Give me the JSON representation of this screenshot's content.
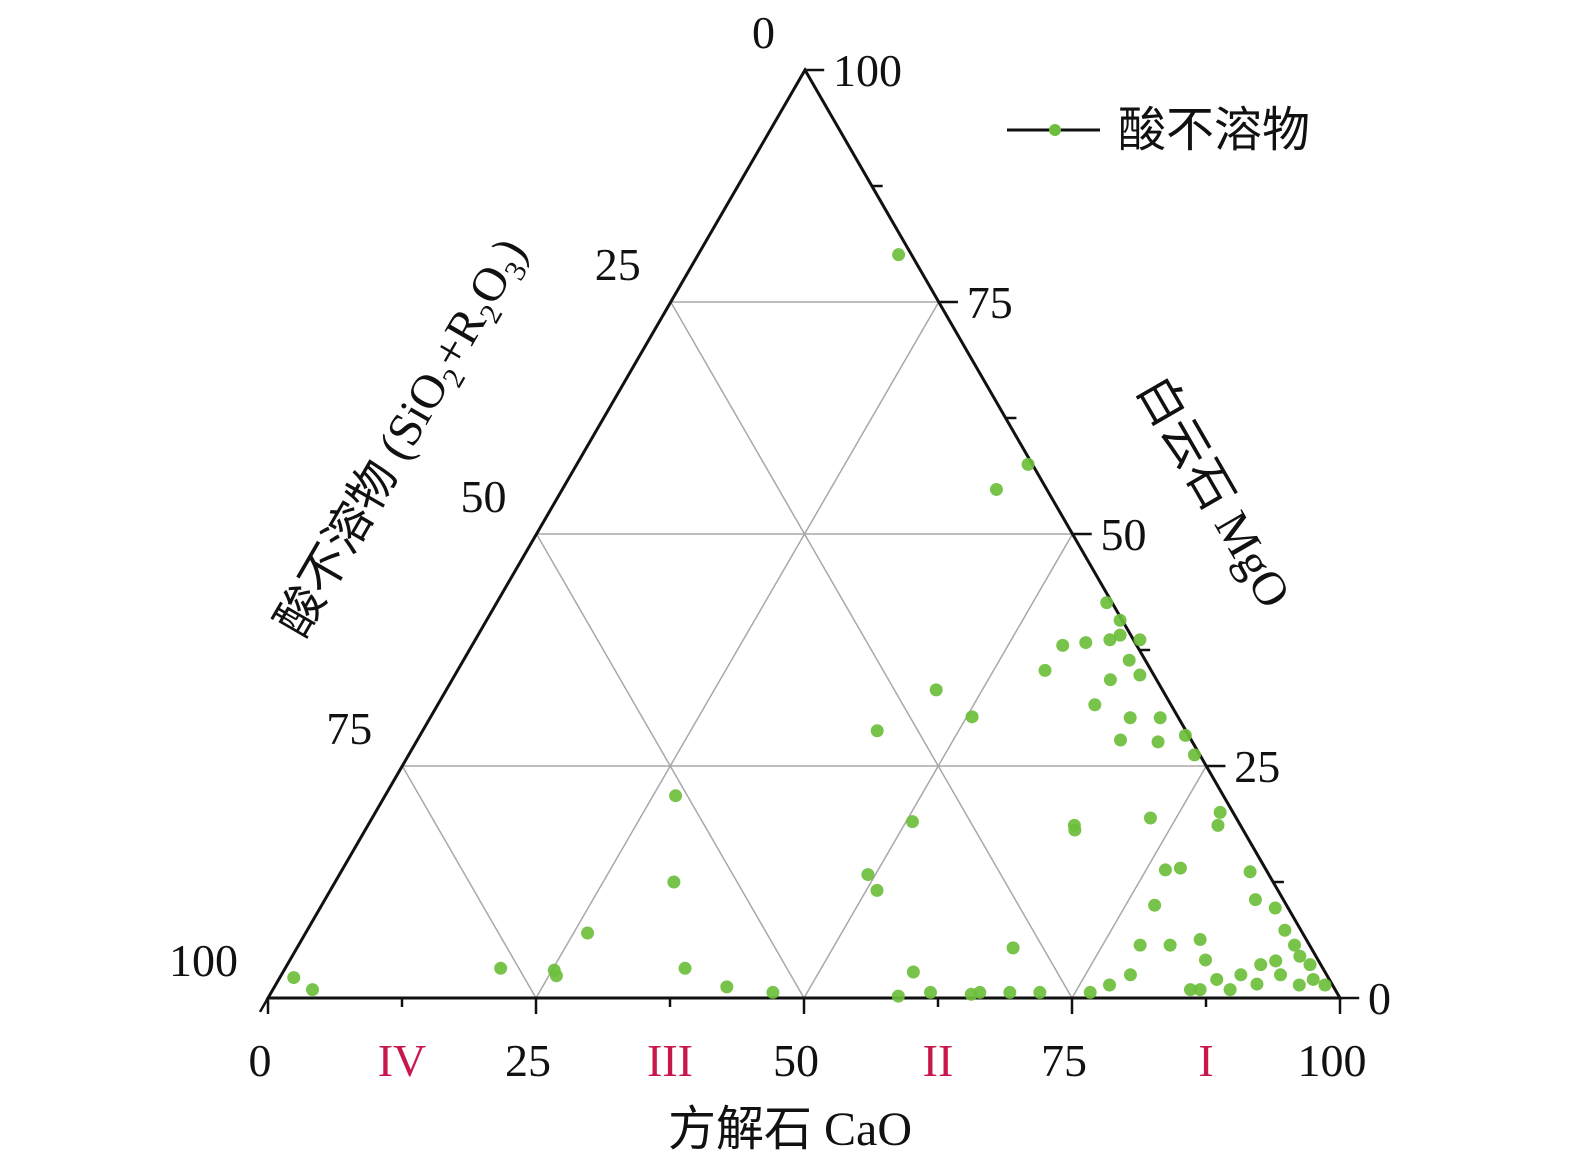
{
  "chart_data": {
    "type": "scatter",
    "subtype": "ternary",
    "axes": {
      "bottom": {
        "label": "方解石 CaO",
        "ticks": [
          "0",
          "25",
          "50",
          "75",
          "100"
        ]
      },
      "right": {
        "label": "白云石 MgO",
        "ticks": [
          "0",
          "25",
          "50",
          "75",
          "100"
        ]
      },
      "left": {
        "label_parts": {
          "a": "酸不溶物 (SiO",
          "s1": "2",
          "b": "+R",
          "s2": "2",
          "c": "O",
          "s3": "3",
          "d": ")"
        },
        "ticks": [
          "0",
          "25",
          "50",
          "75",
          "100"
        ]
      },
      "range": [
        0,
        100
      ],
      "grid_values": [
        25,
        50,
        75
      ],
      "grid": true
    },
    "regions": [
      "IV",
      "III",
      "II",
      "I"
    ],
    "legend": {
      "label": "酸不溶物",
      "placement": "top-right"
    },
    "colors": {
      "point": "#6cbf3c",
      "axis": "#111111",
      "grid": "#a8a8a8",
      "region": "#c8174a"
    },
    "series": [
      {
        "name": "酸不溶物",
        "points_cao_mgo": [
          [
            18.7,
            80.1
          ],
          [
            42.1,
            57.5
          ],
          [
            40.5,
            54.8
          ],
          [
            56.9,
            42.6
          ],
          [
            59.2,
            38.6
          ],
          [
            59.9,
            39.1
          ],
          [
            57.1,
            38.3
          ],
          [
            55.1,
            38.0
          ],
          [
            62.1,
            36.4
          ],
          [
            63.9,
            34.8
          ],
          [
            54.8,
            35.3
          ],
          [
            61.4,
            34.3
          ],
          [
            61.3,
            31.6
          ],
          [
            65.3,
            30.2
          ],
          [
            68.1,
            30.2
          ],
          [
            65.6,
            27.8
          ],
          [
            69.2,
            27.6
          ],
          [
            71.4,
            28.3
          ],
          [
            73.3,
            26.2
          ],
          [
            45.7,
            33.2
          ],
          [
            50.5,
            30.3
          ],
          [
            42.4,
            28.8
          ],
          [
            27.1,
            21.8
          ],
          [
            50.6,
            19.0
          ],
          [
            66.2,
            18.1
          ],
          [
            72.6,
            19.4
          ],
          [
            78.8,
            20.0
          ],
          [
            79.3,
            18.6
          ],
          [
            76.8,
            13.8
          ],
          [
            78.1,
            14.0
          ],
          [
            77.7,
            10.0
          ],
          [
            84.8,
            13.6
          ],
          [
            86.8,
            10.6
          ],
          [
            89.1,
            9.7
          ],
          [
            91.2,
            7.3
          ],
          [
            92.9,
            5.7
          ],
          [
            95.4,
            3.6
          ],
          [
            97.9,
            1.4
          ],
          [
            90.8,
            3.6
          ],
          [
            89.5,
            2.5
          ],
          [
            93.2,
            2.5
          ],
          [
            95.5,
            1.4
          ],
          [
            89.3,
            0.9
          ],
          [
            86.5,
            0.9
          ],
          [
            78.5,
            5.7
          ],
          [
            81.3,
            5.7
          ],
          [
            83.8,
            6.3
          ],
          [
            85.4,
            4.1
          ],
          [
            79.2,
            2.5
          ],
          [
            77.8,
            1.4
          ],
          [
            76.4,
            0.6
          ],
          [
            85.6,
            0.9
          ],
          [
            71.7,
            0.6
          ],
          [
            68.9,
            0.6
          ],
          [
            66.1,
            0.6
          ],
          [
            66.8,
            5.4
          ],
          [
            65.4,
            0.4
          ],
          [
            61.5,
            0.6
          ],
          [
            58.8,
            2.8
          ],
          [
            58.7,
            0.2
          ],
          [
            49.3,
            13.3
          ],
          [
            51.0,
            11.6
          ],
          [
            46.8,
            0.6
          ],
          [
            42.2,
            1.2
          ],
          [
            37.3,
            3.2
          ],
          [
            31.6,
            12.5
          ],
          [
            26.3,
            7.0
          ],
          [
            25.2,
            3.0
          ],
          [
            25.7,
            2.4
          ],
          [
            20.1,
            3.2
          ],
          [
            1.3,
            2.2
          ],
          [
            3.7,
            0.9
          ],
          [
            65.9,
            18.6
          ],
          [
            59.1,
            40.7
          ],
          [
            62.0,
            38.6
          ],
          [
            94.0,
            4.5
          ],
          [
            96.5,
            2.0
          ],
          [
            91.5,
            1.5
          ],
          [
            87.5,
            2.0
          ],
          [
            92.0,
            4.0
          ]
        ]
      }
    ]
  }
}
